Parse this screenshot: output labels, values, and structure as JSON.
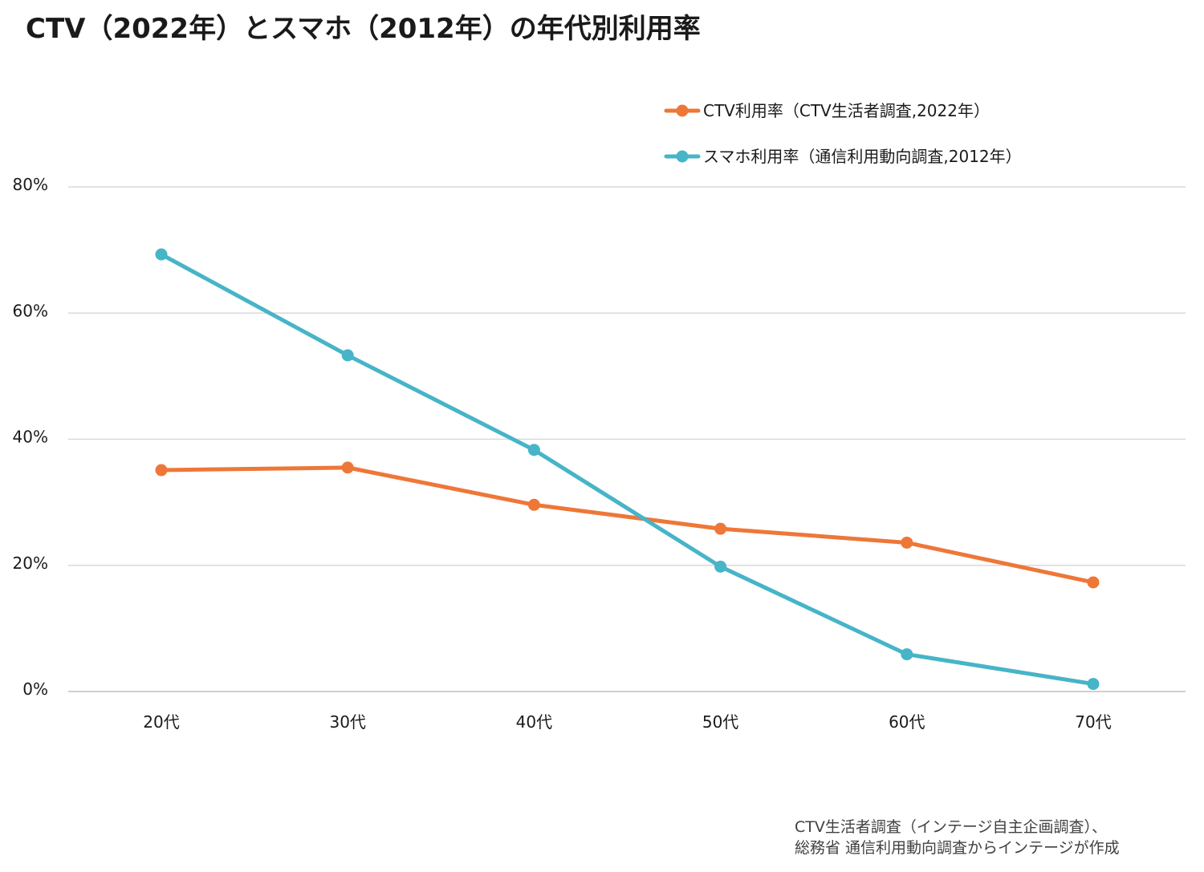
{
  "chart_data": {
    "type": "line",
    "title": "CTV（2022年）とスマホ（2012年）の年代別利用率",
    "categories": [
      "20代",
      "30代",
      "40代",
      "50代",
      "60代",
      "70代"
    ],
    "y_ticks": [
      "0%",
      "20%",
      "40%",
      "60%",
      "80%"
    ],
    "ylim": [
      0,
      80
    ],
    "grid": true,
    "legend_position": "top-right",
    "series": [
      {
        "name": "CTV利用率（CTV生活者調査,2022年）",
        "color": "#ee7738",
        "values": [
          35.1,
          35.5,
          29.6,
          25.8,
          23.6,
          17.3
        ]
      },
      {
        "name": "スマホ利用率（通信利用動向調査,2012年）",
        "color": "#47b4c8",
        "values": [
          69.3,
          53.3,
          38.3,
          19.8,
          5.9,
          1.2
        ]
      }
    ]
  },
  "source": {
    "line1": "CTV生活者調査（インテージ自主企画調査）、",
    "line2": "総務省 通信利用動向調査からインテージが作成"
  }
}
